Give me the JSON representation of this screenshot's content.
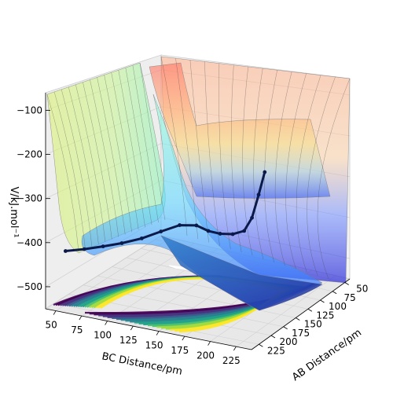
{
  "chart_data": {
    "type": "surface3d",
    "zlabel": "V/kJ.mol⁻¹",
    "xlabel": "BC Distance/pm",
    "ylabel": "AB Distance/pm",
    "z_ticks": [
      -100,
      -200,
      -300,
      -400,
      -500
    ],
    "x_ticks": [
      50,
      75,
      100,
      125,
      150,
      175,
      200,
      225
    ],
    "y_ticks": [
      50,
      75,
      100,
      125,
      150,
      175,
      200,
      225
    ],
    "zlim": [
      -550,
      -60
    ],
    "xlim": [
      40,
      240
    ],
    "ylim": [
      40,
      240
    ],
    "series": [
      {
        "kind": "surface",
        "colormap": "jet"
      },
      {
        "kind": "trajectory",
        "color": "#0b1a4a"
      },
      {
        "kind": "contour",
        "colormap": "viridis"
      }
    ],
    "trajectory": [
      {
        "x": 55,
        "y": 230,
        "z": -420
      },
      {
        "x": 70,
        "y": 222,
        "z": -415
      },
      {
        "x": 85,
        "y": 214,
        "z": -408
      },
      {
        "x": 100,
        "y": 206,
        "z": -400
      },
      {
        "x": 115,
        "y": 196,
        "z": -390
      },
      {
        "x": 128,
        "y": 184,
        "z": -378
      },
      {
        "x": 138,
        "y": 168,
        "z": -372
      },
      {
        "x": 146,
        "y": 152,
        "z": -382
      },
      {
        "x": 150,
        "y": 138,
        "z": -404
      },
      {
        "x": 154,
        "y": 124,
        "z": -420
      },
      {
        "x": 160,
        "y": 112,
        "z": -428
      },
      {
        "x": 166,
        "y": 102,
        "z": -426
      },
      {
        "x": 170,
        "y": 95,
        "z": -400
      },
      {
        "x": 174,
        "y": 90,
        "z": -350
      },
      {
        "x": 178,
        "y": 86,
        "z": -300
      }
    ]
  }
}
